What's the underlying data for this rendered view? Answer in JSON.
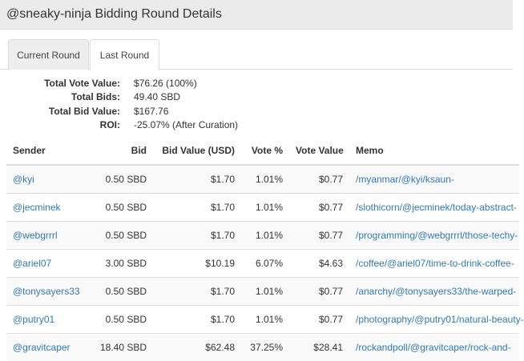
{
  "header": {
    "title": "@sneaky-ninja Bidding Round Details"
  },
  "tabs": [
    {
      "label": "Current Round"
    },
    {
      "label": "Last Round"
    }
  ],
  "summary": [
    {
      "label": "Total Vote Value:",
      "value": "$76.26 (100%)"
    },
    {
      "label": "Total Bids:",
      "value": "49.40 SBD"
    },
    {
      "label": "Total Bid Value:",
      "value": "$167.76"
    },
    {
      "label": "ROI:",
      "value": "-25.07% (After Curation)"
    }
  ],
  "table": {
    "headers": [
      "Sender",
      "Bid",
      "Bid Value (USD)",
      "Vote %",
      "Vote Value",
      "Memo"
    ],
    "rows": [
      {
        "sender": "@kyi",
        "bid": "0.50 SBD",
        "bid_value": "$1.70",
        "vote_pct": "1.01%",
        "vote_value": "$0.77",
        "memo": "/myanmar/@kyi/ksaun-"
      },
      {
        "sender": "@jecminek",
        "bid": "0.50 SBD",
        "bid_value": "$1.70",
        "vote_pct": "1.01%",
        "vote_value": "$0.77",
        "memo": "/slothicorn/@jecminek/today-abstract-"
      },
      {
        "sender": "@webgrrrl",
        "bid": "0.50 SBD",
        "bid_value": "$1.70",
        "vote_pct": "1.01%",
        "vote_value": "$0.77",
        "memo": "/programming/@webgrrrl/those-techy-"
      },
      {
        "sender": "@ariel07",
        "bid": "3.00 SBD",
        "bid_value": "$10.19",
        "vote_pct": "6.07%",
        "vote_value": "$4.63",
        "memo": "/coffee/@ariel07/time-to-drink-coffee-"
      },
      {
        "sender": "@tonysayers33",
        "bid": "0.50 SBD",
        "bid_value": "$1.70",
        "vote_pct": "1.01%",
        "vote_value": "$0.77",
        "memo": "/anarchy/@tonysayers33/the-warped-"
      },
      {
        "sender": "@putry01",
        "bid": "0.50 SBD",
        "bid_value": "$1.70",
        "vote_pct": "1.01%",
        "vote_value": "$0.77",
        "memo": "/photography/@putry01/natural-beauty-"
      },
      {
        "sender": "@gravitcaper",
        "bid": "18.40 SBD",
        "bid_value": "$62.48",
        "vote_pct": "37.25%",
        "vote_value": "$28.41",
        "memo": "/rockandpoll/@gravitcaper/rock-and-"
      }
    ]
  }
}
